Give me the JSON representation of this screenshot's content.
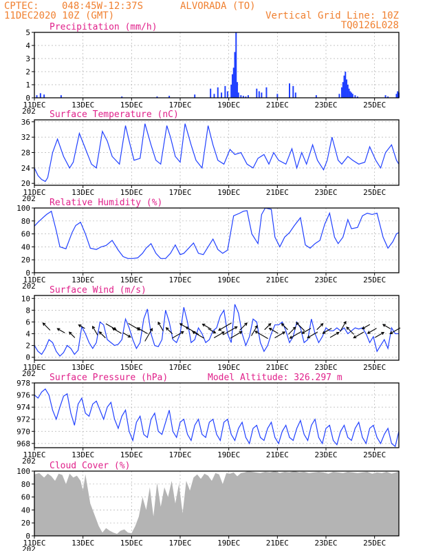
{
  "header": {
    "source": "CPTEC:",
    "coords": "048:45W-12:37S",
    "station": "ALVORADA (TO)",
    "datetime": "11DEC2020 10Z (GMT)",
    "grid_note": "Vertical Grid Line: 10Z",
    "code": "TQ0126L028"
  },
  "x_axis": {
    "tick_labels": [
      "11DEC",
      "13DEC",
      "15DEC",
      "17DEC",
      "19DEC",
      "21DEC",
      "23DEC",
      "25DEC"
    ],
    "tick_days": [
      0,
      2,
      4,
      6,
      8,
      10,
      12,
      14
    ],
    "year_stub": "202",
    "range_days": [
      0,
      15
    ]
  },
  "colors": {
    "header": "#f08030",
    "panel_title": "#e0208a",
    "series_line": "#2040ff",
    "cloud_fill": "#b4b4b4",
    "grid": "#b0b0b0"
  },
  "chart_data": [
    {
      "type": "bar",
      "title": "Precipitation (mm/h)",
      "ylim": [
        0,
        5
      ],
      "yticks": [
        0,
        1,
        2,
        3,
        4,
        5
      ],
      "grid": true,
      "x_unit": "days since 11DEC 10Z",
      "x": [
        0.1,
        0.25,
        0.4,
        1.1,
        3.6,
        5.05,
        5.55,
        6.6,
        7.25,
        7.4,
        7.55,
        7.7,
        7.85,
        7.95,
        8.1,
        8.15,
        8.2,
        8.25,
        8.3,
        8.35,
        8.4,
        8.5,
        8.6,
        8.7,
        8.8,
        9.15,
        9.25,
        9.35,
        9.55,
        10.0,
        10.5,
        10.65,
        10.75,
        11.6,
        12.55,
        12.65,
        12.7,
        12.75,
        12.8,
        12.85,
        12.9,
        12.95,
        13.0,
        13.05,
        13.1,
        13.2,
        13.3,
        14.45,
        14.55,
        14.9,
        14.95,
        15.0
      ],
      "values": [
        0.2,
        0.35,
        0.25,
        0.2,
        0.1,
        0.1,
        0.15,
        0.25,
        0.7,
        0.3,
        0.8,
        0.4,
        0.9,
        0.5,
        1.0,
        1.8,
        2.3,
        3.5,
        5.0,
        1.2,
        0.4,
        0.2,
        0.15,
        0.1,
        0.2,
        0.7,
        0.5,
        0.4,
        0.8,
        0.3,
        1.1,
        0.9,
        0.4,
        0.2,
        0.3,
        0.8,
        1.2,
        1.7,
        2.0,
        1.4,
        1.0,
        0.7,
        0.5,
        0.4,
        0.3,
        0.2,
        0.1,
        0.2,
        0.1,
        0.3,
        0.5,
        0.4
      ]
    },
    {
      "type": "line",
      "title": "Surface Temperature (nC)",
      "ylim": [
        19.5,
        36.5
      ],
      "yticks": [
        20,
        24,
        28,
        32,
        36
      ],
      "grid": true,
      "x_unit": "days since 11DEC 10Z",
      "x": [
        0,
        0.15,
        0.3,
        0.45,
        0.55,
        0.75,
        0.95,
        1.2,
        1.45,
        1.6,
        1.85,
        2.1,
        2.35,
        2.55,
        2.8,
        3.0,
        3.2,
        3.5,
        3.75,
        3.9,
        4.1,
        4.35,
        4.55,
        4.8,
        5.0,
        5.2,
        5.45,
        5.6,
        5.8,
        6.0,
        6.2,
        6.45,
        6.65,
        6.9,
        7.15,
        7.35,
        7.55,
        7.8,
        8.05,
        8.25,
        8.5,
        8.75,
        9.0,
        9.2,
        9.45,
        9.65,
        9.85,
        10.05,
        10.35,
        10.6,
        10.8,
        11.0,
        11.2,
        11.45,
        11.65,
        11.9,
        12.05,
        12.25,
        12.5,
        12.65,
        12.9,
        13.1,
        13.35,
        13.6,
        13.8,
        14.05,
        14.25,
        14.45,
        14.7,
        14.9,
        15.0
      ],
      "values": [
        24,
        22,
        21,
        20.5,
        21.5,
        28,
        31.5,
        27,
        24,
        25.5,
        33,
        29,
        25,
        24,
        33.5,
        31,
        27,
        25,
        35,
        31,
        26,
        26.5,
        35.5,
        30,
        26,
        25,
        35,
        32,
        27,
        25.5,
        35.5,
        30,
        26,
        24,
        35,
        30,
        26,
        25,
        28.8,
        27.5,
        28,
        25,
        24,
        26.5,
        27.5,
        25,
        28,
        26,
        25,
        29,
        24,
        28,
        25,
        30,
        26,
        23.5,
        26,
        32,
        26,
        25,
        27,
        26,
        25,
        25.5,
        29.5,
        26,
        24,
        28,
        30,
        26,
        25
      ]
    },
    {
      "type": "line",
      "title": "Relative Humidity (%)",
      "ylim": [
        0,
        100
      ],
      "yticks": [
        0,
        20,
        40,
        60,
        80,
        100
      ],
      "grid": true,
      "x_unit": "days since 11DEC 10Z",
      "x": [
        0,
        0.15,
        0.35,
        0.5,
        0.7,
        0.9,
        1.05,
        1.3,
        1.55,
        1.7,
        1.9,
        2.1,
        2.3,
        2.55,
        2.75,
        2.95,
        3.2,
        3.45,
        3.65,
        3.85,
        4.05,
        4.25,
        4.45,
        4.6,
        4.8,
        5.0,
        5.2,
        5.4,
        5.6,
        5.8,
        6.0,
        6.15,
        6.35,
        6.55,
        6.75,
        6.95,
        7.15,
        7.35,
        7.55,
        7.75,
        7.95,
        8.2,
        8.45,
        8.6,
        8.75,
        8.95,
        9.2,
        9.35,
        9.5,
        9.75,
        9.9,
        10.1,
        10.3,
        10.5,
        10.7,
        10.95,
        11.15,
        11.35,
        11.55,
        11.75,
        11.95,
        12.15,
        12.35,
        12.5,
        12.7,
        12.9,
        13.05,
        13.3,
        13.5,
        13.7,
        13.9,
        14.1,
        14.35,
        14.55,
        14.75,
        14.9,
        15.0
      ],
      "values": [
        72,
        78,
        85,
        90,
        95,
        65,
        40,
        37,
        62,
        73,
        78,
        60,
        38,
        36,
        40,
        42,
        50,
        35,
        25,
        22,
        22,
        23,
        30,
        38,
        45,
        30,
        22,
        22,
        30,
        43,
        28,
        30,
        38,
        46,
        30,
        28,
        40,
        52,
        36,
        30,
        35,
        88,
        92,
        95,
        96,
        60,
        45,
        90,
        100,
        98,
        55,
        40,
        55,
        62,
        73,
        85,
        43,
        38,
        45,
        50,
        75,
        92,
        55,
        45,
        55,
        82,
        68,
        70,
        88,
        92,
        90,
        92,
        55,
        38,
        48,
        60,
        62
      ]
    },
    {
      "type": "line",
      "title": "Surface Wind (m/s)",
      "ylim": [
        -0.5,
        10.5
      ],
      "yticks": [
        0,
        2,
        4,
        6,
        8,
        10
      ],
      "grid": true,
      "x_unit": "days since 11DEC 10Z",
      "x": [
        0,
        0.15,
        0.3,
        0.45,
        0.6,
        0.75,
        0.9,
        1.05,
        1.2,
        1.35,
        1.5,
        1.65,
        1.8,
        1.95,
        2.1,
        2.25,
        2.4,
        2.55,
        2.7,
        2.85,
        3.0,
        3.15,
        3.3,
        3.45,
        3.6,
        3.75,
        3.9,
        4.05,
        4.2,
        4.35,
        4.5,
        4.65,
        4.8,
        4.95,
        5.1,
        5.25,
        5.4,
        5.55,
        5.7,
        5.85,
        6.0,
        6.15,
        6.3,
        6.45,
        6.6,
        6.75,
        6.9,
        7.05,
        7.2,
        7.35,
        7.5,
        7.65,
        7.8,
        7.95,
        8.1,
        8.25,
        8.4,
        8.55,
        8.7,
        8.85,
        9.0,
        9.15,
        9.3,
        9.45,
        9.6,
        9.75,
        9.9,
        10.05,
        10.2,
        10.35,
        10.5,
        10.65,
        10.8,
        10.95,
        11.1,
        11.25,
        11.4,
        11.55,
        11.7,
        11.85,
        12.0,
        12.15,
        12.3,
        12.45,
        12.6,
        12.75,
        12.9,
        13.05,
        13.2,
        13.35,
        13.5,
        13.65,
        13.8,
        13.95,
        14.1,
        14.25,
        14.4,
        14.55,
        14.7,
        14.85,
        15.0
      ],
      "values": [
        2,
        1,
        0.5,
        1.5,
        3,
        2.5,
        1,
        0.2,
        0.8,
        2,
        1.5,
        0.5,
        1.2,
        5.2,
        4,
        2.5,
        1.5,
        2.5,
        6,
        5.5,
        3,
        2.5,
        2,
        2.2,
        3,
        6.5,
        5,
        3,
        1.5,
        2.5,
        6.5,
        8.2,
        4,
        2,
        1.8,
        3,
        8,
        6,
        3,
        2.5,
        4,
        8.5,
        6,
        2.5,
        3,
        5,
        4,
        2.5,
        3,
        4.5,
        5,
        7,
        8,
        4,
        2.5,
        9,
        7.5,
        4,
        2,
        3.5,
        6.5,
        6,
        2.5,
        1,
        2,
        4,
        5.5,
        5.5,
        6,
        4.5,
        2.5,
        3.5,
        6,
        5,
        2.5,
        3,
        6.5,
        4,
        2.5,
        3.5,
        5,
        4.5,
        4.5,
        5,
        4.5,
        5,
        4,
        4.5,
        5,
        4.8,
        5,
        4,
        2.5,
        3.5,
        1,
        2,
        3,
        1.5,
        5,
        4,
        4
      ]
    },
    {
      "type": "line",
      "title": "Surface Pressure (hPa)",
      "annotation": "Model Altitude: 326.297 m",
      "ylim": [
        967.3,
        978
      ],
      "yticks": [
        968,
        970,
        972,
        974,
        976,
        978
      ],
      "grid": true,
      "x_unit": "days since 11DEC 10Z",
      "x": [
        0,
        0.15,
        0.3,
        0.45,
        0.6,
        0.75,
        0.9,
        1.05,
        1.2,
        1.35,
        1.5,
        1.65,
        1.8,
        1.95,
        2.1,
        2.25,
        2.4,
        2.55,
        2.7,
        2.85,
        3.0,
        3.15,
        3.3,
        3.45,
        3.6,
        3.75,
        3.9,
        4.05,
        4.2,
        4.35,
        4.5,
        4.65,
        4.8,
        4.95,
        5.1,
        5.25,
        5.4,
        5.55,
        5.7,
        5.85,
        6.0,
        6.15,
        6.3,
        6.45,
        6.6,
        6.75,
        6.9,
        7.05,
        7.2,
        7.35,
        7.5,
        7.65,
        7.8,
        7.95,
        8.1,
        8.25,
        8.4,
        8.55,
        8.7,
        8.85,
        9.0,
        9.15,
        9.3,
        9.45,
        9.6,
        9.75,
        9.9,
        10.05,
        10.2,
        10.35,
        10.5,
        10.65,
        10.8,
        10.95,
        11.1,
        11.25,
        11.4,
        11.55,
        11.7,
        11.85,
        12.0,
        12.15,
        12.3,
        12.45,
        12.6,
        12.75,
        12.9,
        13.05,
        13.2,
        13.35,
        13.5,
        13.65,
        13.8,
        13.95,
        14.1,
        14.25,
        14.4,
        14.55,
        14.7,
        14.85,
        15.0
      ],
      "values": [
        976,
        975.5,
        976.5,
        977,
        976,
        973.5,
        972,
        974,
        975.8,
        976.2,
        973,
        971,
        974.5,
        975.5,
        973,
        972.5,
        974.5,
        975,
        973.5,
        972,
        974,
        974.8,
        972,
        970.5,
        972.5,
        973.5,
        970,
        968.5,
        971.5,
        972.5,
        969.5,
        969,
        972,
        973,
        970,
        969.5,
        971.5,
        973.5,
        970,
        969,
        971.5,
        972,
        969.5,
        968.5,
        971,
        972,
        969.5,
        969,
        971.5,
        972,
        969.5,
        968.5,
        971.5,
        972,
        969.5,
        968.5,
        970.5,
        971.5,
        969,
        968,
        970.5,
        971,
        969,
        968.5,
        970.5,
        971.5,
        969,
        968,
        970,
        971,
        969,
        968.5,
        970.5,
        971.8,
        969.5,
        968.5,
        971,
        972,
        969,
        968,
        970.5,
        971,
        968.5,
        967.8,
        970,
        971,
        969,
        968.5,
        970.5,
        971.5,
        969,
        968,
        970.5,
        971,
        969,
        968,
        969.5,
        970.5,
        968,
        967.5,
        970
      ]
    },
    {
      "type": "area",
      "title": "Cloud Cover (%)",
      "ylim": [
        0,
        100
      ],
      "yticks": [
        0,
        20,
        40,
        60,
        80,
        100
      ],
      "grid": true,
      "x_unit": "days since 11DEC 10Z",
      "x": [
        0,
        0.2,
        0.4,
        0.55,
        0.7,
        0.85,
        1.0,
        1.15,
        1.3,
        1.45,
        1.6,
        1.75,
        1.9,
        2.0,
        2.1,
        2.3,
        2.5,
        2.65,
        2.8,
        2.95,
        3.1,
        3.25,
        3.4,
        3.55,
        3.7,
        3.85,
        4.0,
        4.15,
        4.3,
        4.45,
        4.6,
        4.75,
        4.9,
        5.05,
        5.2,
        5.35,
        5.5,
        5.65,
        5.8,
        5.95,
        6.1,
        6.25,
        6.4,
        6.55,
        6.7,
        6.85,
        7.0,
        7.15,
        7.3,
        7.45,
        7.6,
        7.75,
        7.9,
        8.05,
        8.2,
        8.35,
        8.5,
        8.65,
        8.8,
        8.95,
        9.1,
        9.3,
        9.5,
        9.7,
        9.9,
        10.1,
        10.3,
        10.5,
        10.7,
        10.9,
        11.1,
        11.3,
        11.5,
        11.7,
        11.9,
        12.1,
        12.3,
        12.5,
        12.7,
        12.9,
        13.1,
        13.3,
        13.5,
        13.7,
        13.9,
        14.1,
        14.3,
        14.5,
        14.7,
        14.9,
        15.0
      ],
      "values": [
        95,
        97,
        90,
        96,
        92,
        85,
        96,
        94,
        80,
        96,
        90,
        93,
        85,
        70,
        95,
        50,
        30,
        15,
        5,
        12,
        8,
        5,
        3,
        8,
        10,
        5,
        4,
        15,
        30,
        60,
        40,
        75,
        30,
        82,
        45,
        75,
        60,
        85,
        50,
        80,
        35,
        85,
        70,
        90,
        95,
        88,
        96,
        93,
        85,
        97,
        95,
        80,
        97,
        96,
        98,
        92,
        97,
        98,
        100,
        99,
        98,
        97,
        99,
        98,
        100,
        97,
        99,
        98,
        100,
        98,
        99,
        97,
        98,
        99,
        98,
        96,
        99,
        98,
        97,
        99,
        98,
        97,
        98,
        99,
        96,
        98,
        97,
        99,
        96,
        98,
        100
      ]
    }
  ],
  "wind_arrows": {
    "x": [
      0.5,
      1.1,
      1.55,
      1.95,
      2.5,
      2.8,
      3.15,
      3.4,
      3.8,
      4.1,
      4.45,
      4.7,
      5.2,
      5.55,
      5.9,
      6.2,
      6.5,
      6.75,
      7.1,
      7.3,
      7.6,
      7.85,
      8.05,
      8.3,
      8.6,
      9.05,
      9.35,
      9.6,
      9.85,
      10.1,
      10.3,
      10.6,
      10.75,
      10.95,
      11.2,
      11.45,
      11.75,
      12.05,
      12.35,
      12.7,
      13.0,
      13.35,
      13.65,
      13.9,
      14.2,
      14.5,
      14.85
    ],
    "speed": [
      4,
      3,
      2.5,
      2,
      4,
      3,
      5,
      4,
      3,
      6,
      5,
      7,
      4,
      3,
      6,
      5,
      7,
      6,
      4,
      3,
      5,
      7,
      8,
      6,
      4,
      5,
      7,
      3,
      4,
      5,
      3,
      4,
      6,
      5,
      4,
      5,
      3,
      4,
      4,
      5,
      4,
      5,
      3,
      4,
      4,
      3,
      5
    ],
    "dir_deg": [
      315,
      300,
      315,
      300,
      330,
      315,
      120,
      300,
      120,
      120,
      300,
      30,
      330,
      315,
      60,
      300,
      300,
      300,
      300,
      120,
      60,
      240,
      60,
      60,
      45,
      30,
      300,
      45,
      300,
      60,
      315,
      45,
      240,
      315,
      240,
      240,
      45,
      240,
      60,
      30,
      315,
      240,
      240,
      240,
      60,
      300,
      240
    ]
  }
}
